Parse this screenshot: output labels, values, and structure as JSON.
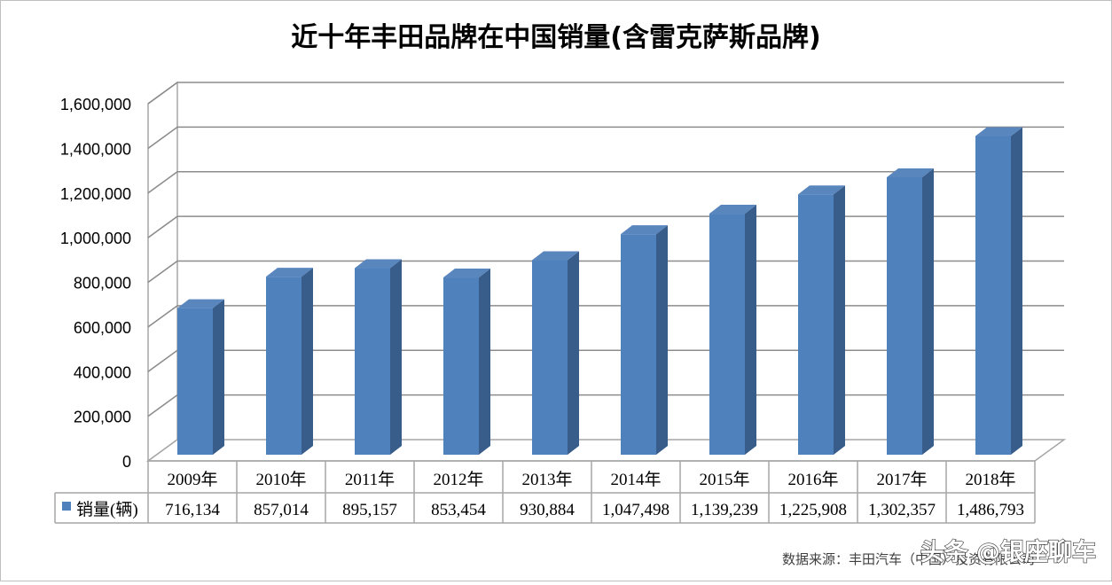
{
  "chart_data": {
    "type": "bar",
    "title": "近十年丰田品牌在中国销量(含雷克萨斯品牌)",
    "categories": [
      "2009年",
      "2010年",
      "2011年",
      "2012年",
      "2013年",
      "2014年",
      "2015年",
      "2016年",
      "2017年",
      "2018年"
    ],
    "series": [
      {
        "name": "销量(辆)",
        "values": [
          716134,
          857014,
          895157,
          853454,
          930884,
          1047498,
          1139239,
          1225908,
          1302357,
          1486793
        ],
        "display_values": [
          "716,134",
          "857,014",
          "895,157",
          "853,454",
          "930,884",
          "1,047,498",
          "1,139,239",
          "1,225,908",
          "1,302,357",
          "1,486,793"
        ]
      }
    ],
    "ylim": [
      0,
      1600000
    ],
    "y_ticks": [
      "0",
      "200,000",
      "400,000",
      "600,000",
      "800,000",
      "1,000,000",
      "1,200,000",
      "1,400,000",
      "1,600,000"
    ],
    "y_tick_values": [
      0,
      200000,
      400000,
      600000,
      800000,
      1000000,
      1200000,
      1400000,
      1600000
    ],
    "grid": true,
    "legend": "data-table",
    "bar_color": "#4F81BD",
    "bar_side_color": "#385D8A",
    "bar_top_color": "#5A86BE"
  },
  "footer": {
    "source": "数据来源：丰田汽车（中国）投资有限公司",
    "watermark": "头条 @银座聊车"
  }
}
